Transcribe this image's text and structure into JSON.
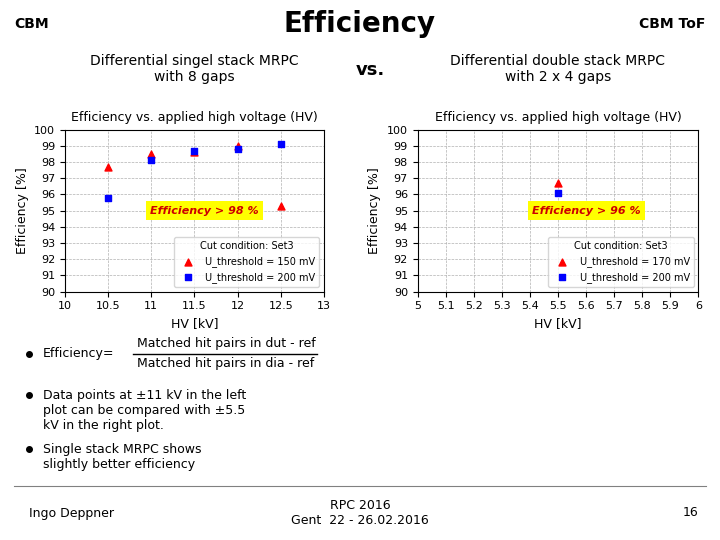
{
  "title": "Efficiency",
  "annotations": [
    "CBM",
    "CBM ToF",
    "vs.",
    "Efficiency=",
    "Matched hit pairs in dut - ref",
    "Matched hit pairs in dia - ref",
    "Data points at ±11 kV in the left\nplot can be compared with ±5.5\nkV in the right plot.",
    "Single stack MRPC shows\nslightly better efficiency",
    "Ingo Deppner",
    "RPC 2016\nGent  22 - 26.02.2016",
    "16"
  ],
  "chart_data": [
    {
      "type": "scatter",
      "title": "Differential singel stack MRPC\nwith 8 gaps",
      "subtitle": "Efficiency vs. applied high voltage (HV)",
      "x_label": "HV [kV]",
      "y_label": "Efficiency [%]",
      "xlim": [
        10,
        13
      ],
      "ylim": [
        90,
        100
      ],
      "xticks": [
        10,
        10.5,
        11,
        11.5,
        12,
        12.5,
        13
      ],
      "yticks": [
        90,
        91,
        92,
        93,
        94,
        95,
        96,
        97,
        98,
        99,
        100
      ],
      "grid": true,
      "legend": "lower right",
      "legend_title": "Cut condition: Set3",
      "annotations": [
        "Efficiency > 98 %"
      ],
      "series": [
        {
          "name": "U_threshold = 150 mV",
          "color": "red",
          "marker": "triangle",
          "x": [
            10.5,
            11.0,
            11.5,
            12.0,
            12.5
          ],
          "values": [
            97.7,
            98.5,
            98.6,
            99.0,
            95.3
          ]
        },
        {
          "name": "U_threshold = 200 mV",
          "color": "blue",
          "marker": "square",
          "x": [
            10.5,
            11.0,
            11.5,
            12.0,
            12.5
          ],
          "values": [
            95.8,
            98.1,
            98.7,
            98.8,
            99.1
          ]
        }
      ]
    },
    {
      "type": "scatter",
      "title": "Differential double stack MRPC\nwith 2 x 4 gaps",
      "subtitle": "Efficiency vs. applied high voltage (HV)",
      "x_label": "HV [kV]",
      "y_label": "Efficiency [%]",
      "xlim": [
        5.0,
        6.0
      ],
      "ylim": [
        90,
        100
      ],
      "xticks": [
        5,
        5.1,
        5.2,
        5.3,
        5.4,
        5.5,
        5.6,
        5.7,
        5.8,
        5.9,
        6
      ],
      "yticks": [
        90,
        91,
        92,
        93,
        94,
        95,
        96,
        97,
        98,
        99,
        100
      ],
      "grid": true,
      "legend": "lower right",
      "legend_title": "Cut condition: Set3",
      "annotations": [
        "Efficiency > 96 %"
      ],
      "series": [
        {
          "name": "U_threshold = 170 mV",
          "color": "red",
          "marker": "triangle",
          "x": [
            5.5
          ],
          "values": [
            96.7
          ]
        },
        {
          "name": "U_threshold = 200 mV",
          "color": "blue",
          "marker": "square",
          "x": [
            5.5
          ],
          "values": [
            96.1
          ]
        }
      ]
    }
  ]
}
